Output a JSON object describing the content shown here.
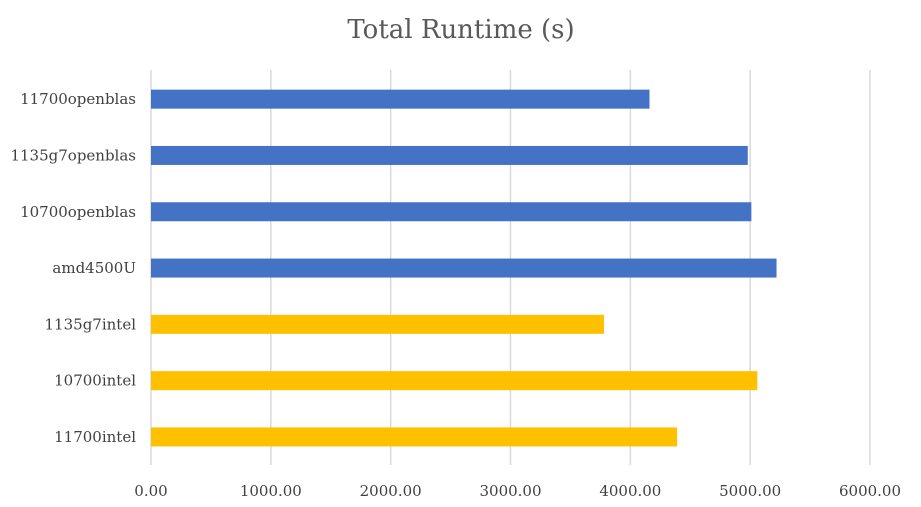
{
  "chart_data": {
    "type": "bar",
    "orientation": "horizontal",
    "title": "Total Runtime (s)",
    "xlabel": "",
    "ylabel": "",
    "xlim": [
      0,
      6000
    ],
    "x_ticks": [
      "0.00",
      "1000.00",
      "2000.00",
      "3000.00",
      "4000.00",
      "5000.00",
      "6000.00"
    ],
    "x_tick_values": [
      0,
      1000,
      2000,
      3000,
      4000,
      5000,
      6000
    ],
    "grid": "vertical",
    "legend": "none",
    "categories": [
      "11700openblas",
      "1135g7openblas",
      "10700openblas",
      "amd4500U",
      "1135g7intel",
      "10700intel",
      "11700intel"
    ],
    "values": [
      4160,
      4980,
      5010,
      5220,
      3780,
      5060,
      4390
    ],
    "colors": [
      "#4472C4",
      "#4472C4",
      "#4472C4",
      "#4472C4",
      "#FFC000",
      "#FFC000",
      "#FFC000"
    ]
  }
}
